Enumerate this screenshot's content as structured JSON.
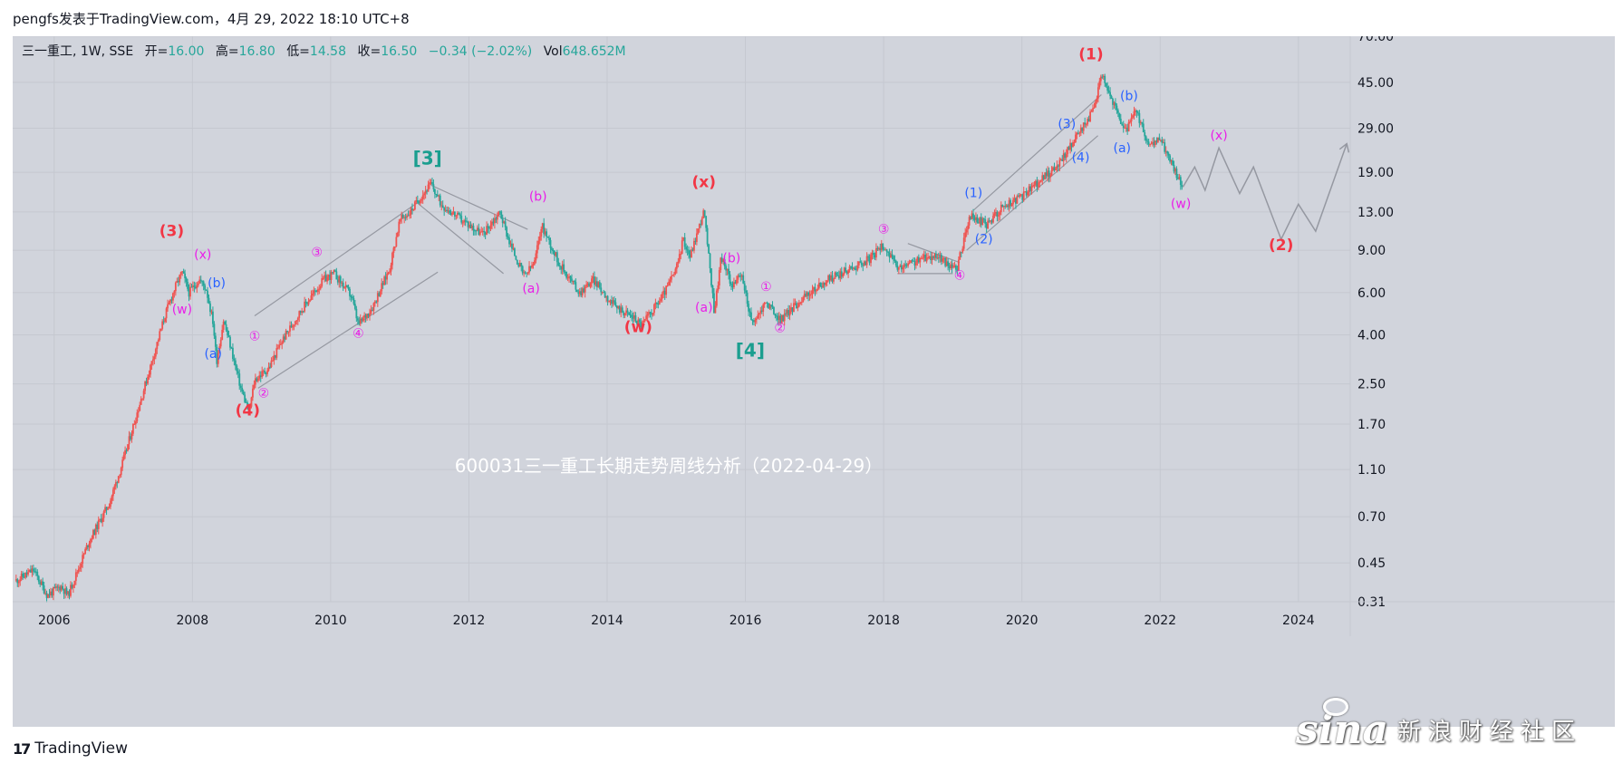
{
  "caption": "pengfs发表于TradingView.com，4月 29, 2022 18:10 UTC+8",
  "legend": {
    "symbol": "三一重工, 1W, SSE",
    "open_label": "开=",
    "open": "16.00",
    "high_label": "高=",
    "high": "16.80",
    "low_label": "低=",
    "low": "14.58",
    "close_label": "收=",
    "close": "16.50",
    "change": "−0.34 (−2.02%)",
    "vol_label": "Vol",
    "vol": "648.652M"
  },
  "watermark": "600031三一重工长期走势周线分析（2022-04-29）",
  "footer": {
    "brand": "TradingView",
    "logo_mark": "17"
  },
  "sina": {
    "word": "sina",
    "cn": "新浪财经社区"
  },
  "colors": {
    "background": "#d1d4dc",
    "up": "#ef5350",
    "down": "#26a69a",
    "legend_value": "#26a69a",
    "wave_red": "#f23645",
    "wave_magenta": "#e91ee8",
    "wave_blue": "#2962ff",
    "wave_teal": "#1a9e8f",
    "trendline": "#9598a1"
  },
  "chart_data": {
    "type": "candlestick",
    "title": "600031三一重工长期走势周线分析（2022-04-29）",
    "y_scale": "log",
    "y_ticks": [
      0.31,
      0.45,
      0.7,
      1.1,
      1.7,
      2.5,
      4.0,
      6.0,
      9.0,
      13.0,
      19.0,
      29.0,
      45.0,
      70.0
    ],
    "y_tick_labels": [
      "0.31",
      "0.45",
      "0.70",
      "1.10",
      "1.70",
      "2.50",
      "4.00",
      "6.00",
      "9.00",
      "13.00",
      "19.00",
      "29.00",
      "45.00",
      "70.00"
    ],
    "x_ticks": [
      "2006",
      "2008",
      "2010",
      "2012",
      "2014",
      "2016",
      "2018",
      "2020",
      "2022",
      "2024"
    ],
    "xlim": [
      2005.4,
      2024.75
    ],
    "grid": true,
    "price_path": [
      [
        2005.45,
        0.38
      ],
      [
        2005.7,
        0.42
      ],
      [
        2005.9,
        0.33
      ],
      [
        2006.1,
        0.36
      ],
      [
        2006.2,
        0.33
      ],
      [
        2006.5,
        0.55
      ],
      [
        2006.8,
        0.8
      ],
      [
        2007.0,
        1.2
      ],
      [
        2007.2,
        1.9
      ],
      [
        2007.4,
        3.0
      ],
      [
        2007.6,
        4.8
      ],
      [
        2007.75,
        6.3
      ],
      [
        2007.85,
        7.3
      ],
      [
        2007.95,
        6.0
      ],
      [
        2008.1,
        6.8
      ],
      [
        2008.2,
        6.2
      ],
      [
        2008.3,
        4.5
      ],
      [
        2008.35,
        3.1
      ],
      [
        2008.45,
        4.6
      ],
      [
        2008.55,
        3.6
      ],
      [
        2008.7,
        2.4
      ],
      [
        2008.82,
        1.9
      ],
      [
        2008.9,
        2.6
      ],
      [
        2009.1,
        2.9
      ],
      [
        2009.3,
        3.8
      ],
      [
        2009.6,
        5.2
      ],
      [
        2009.9,
        6.8
      ],
      [
        2010.05,
        7.2
      ],
      [
        2010.3,
        5.8
      ],
      [
        2010.4,
        4.4
      ],
      [
        2010.6,
        5.2
      ],
      [
        2010.85,
        7.5
      ],
      [
        2011.0,
        12.0
      ],
      [
        2011.15,
        13.0
      ],
      [
        2011.3,
        15.0
      ],
      [
        2011.45,
        17.0
      ],
      [
        2011.6,
        14.0
      ],
      [
        2011.9,
        12.0
      ],
      [
        2012.2,
        10.5
      ],
      [
        2012.45,
        13.0
      ],
      [
        2012.6,
        9.5
      ],
      [
        2012.8,
        7.0
      ],
      [
        2012.95,
        8.0
      ],
      [
        2013.05,
        11.5
      ],
      [
        2013.3,
        8.0
      ],
      [
        2013.6,
        6.0
      ],
      [
        2013.8,
        6.8
      ],
      [
        2014.1,
        5.3
      ],
      [
        2014.4,
        4.7
      ],
      [
        2014.5,
        4.4
      ],
      [
        2014.8,
        5.8
      ],
      [
        2015.0,
        7.5
      ],
      [
        2015.1,
        10.0
      ],
      [
        2015.2,
        8.5
      ],
      [
        2015.4,
        13.2
      ],
      [
        2015.55,
        5.0
      ],
      [
        2015.65,
        8.5
      ],
      [
        2015.8,
        6.5
      ],
      [
        2015.95,
        7.0
      ],
      [
        2016.1,
        4.4
      ],
      [
        2016.3,
        5.5
      ],
      [
        2016.5,
        4.6
      ],
      [
        2016.8,
        5.6
      ],
      [
        2017.2,
        6.8
      ],
      [
        2017.5,
        7.5
      ],
      [
        2017.8,
        8.3
      ],
      [
        2018.0,
        9.5
      ],
      [
        2018.2,
        7.5
      ],
      [
        2018.5,
        8.2
      ],
      [
        2018.75,
        8.6
      ],
      [
        2019.05,
        7.4
      ],
      [
        2019.25,
        12.5
      ],
      [
        2019.5,
        11.5
      ],
      [
        2019.7,
        13.5
      ],
      [
        2020.0,
        15.0
      ],
      [
        2020.25,
        17.5
      ],
      [
        2020.5,
        20.0
      ],
      [
        2020.8,
        27.0
      ],
      [
        2021.05,
        35.0
      ],
      [
        2021.15,
        50.0
      ],
      [
        2021.3,
        38.0
      ],
      [
        2021.5,
        28.0
      ],
      [
        2021.65,
        34.0
      ],
      [
        2021.85,
        24.0
      ],
      [
        2022.0,
        26.5
      ],
      [
        2022.15,
        21.0
      ],
      [
        2022.33,
        16.5
      ]
    ],
    "last_close": 16.5,
    "projection": [
      [
        2022.33,
        16.5
      ],
      [
        2022.5,
        20.0
      ],
      [
        2022.65,
        16.0
      ],
      [
        2022.85,
        24.0
      ],
      [
        2023.15,
        15.5
      ],
      [
        2023.35,
        20.0
      ],
      [
        2023.75,
        10.0
      ],
      [
        2024.0,
        14.0
      ],
      [
        2024.25,
        10.8
      ],
      [
        2024.7,
        25.0
      ]
    ],
    "trendlines": [
      {
        "from": [
          2008.9,
          4.8
        ],
        "to": [
          2011.3,
          14.5
        ]
      },
      {
        "from": [
          2008.95,
          2.4
        ],
        "to": [
          2011.55,
          7.3
        ]
      },
      {
        "from": [
          2011.45,
          16.8
        ],
        "to": [
          2012.85,
          11.0
        ]
      },
      {
        "from": [
          2011.25,
          14.2
        ],
        "to": [
          2012.5,
          7.2
        ]
      },
      {
        "from": [
          2018.35,
          9.6
        ],
        "to": [
          2019.1,
          8.0
        ]
      },
      {
        "from": [
          2018.2,
          7.2
        ],
        "to": [
          2019.0,
          7.2
        ]
      },
      {
        "from": [
          2019.3,
          13.2
        ],
        "to": [
          2021.15,
          40.0
        ]
      },
      {
        "from": [
          2019.2,
          9.0
        ],
        "to": [
          2021.1,
          27.0
        ]
      }
    ],
    "wave_labels": [
      {
        "text": "(3)",
        "x": 2007.7,
        "y": 10.3,
        "color": "red"
      },
      {
        "text": "(x)",
        "x": 2008.15,
        "y": 8.3,
        "color": "magenta"
      },
      {
        "text": "(w)",
        "x": 2007.85,
        "y": 4.9,
        "color": "magenta"
      },
      {
        "text": "(b)",
        "x": 2008.35,
        "y": 6.3,
        "color": "blue"
      },
      {
        "text": "(a)",
        "x": 2008.3,
        "y": 3.2,
        "color": "blue"
      },
      {
        "text": "(4)",
        "x": 2008.8,
        "y": 1.85,
        "color": "red"
      },
      {
        "text": "①",
        "x": 2008.9,
        "y": 3.8,
        "color": "magenta"
      },
      {
        "text": "②",
        "x": 2009.03,
        "y": 2.2,
        "color": "magenta"
      },
      {
        "text": "③",
        "x": 2009.8,
        "y": 8.5,
        "color": "magenta"
      },
      {
        "text": "④",
        "x": 2010.4,
        "y": 3.9,
        "color": "magenta"
      },
      {
        "text": "[3]",
        "x": 2011.4,
        "y": 20.5,
        "color": "teal"
      },
      {
        "text": "(b)",
        "x": 2013.0,
        "y": 14.5,
        "color": "magenta"
      },
      {
        "text": "(a)",
        "x": 2012.9,
        "y": 6.0,
        "color": "magenta"
      },
      {
        "text": "(w)",
        "x": 2014.45,
        "y": 4.1,
        "color": "red"
      },
      {
        "text": "(x)",
        "x": 2015.4,
        "y": 16.5,
        "color": "red"
      },
      {
        "text": "(b)",
        "x": 2015.8,
        "y": 8.0,
        "color": "magenta"
      },
      {
        "text": "(a)",
        "x": 2015.4,
        "y": 5.0,
        "color": "magenta"
      },
      {
        "text": "①",
        "x": 2016.3,
        "y": 6.1,
        "color": "magenta"
      },
      {
        "text": "②",
        "x": 2016.5,
        "y": 4.1,
        "color": "magenta"
      },
      {
        "text": "[4]",
        "x": 2016.07,
        "y": 3.25,
        "color": "teal"
      },
      {
        "text": "③",
        "x": 2018.0,
        "y": 10.6,
        "color": "magenta"
      },
      {
        "text": "④",
        "x": 2019.1,
        "y": 6.8,
        "color": "magenta"
      },
      {
        "text": "(1)",
        "x": 2019.3,
        "y": 15.0,
        "color": "blue"
      },
      {
        "text": "(2)",
        "x": 2019.45,
        "y": 9.6,
        "color": "blue"
      },
      {
        "text": "(3)",
        "x": 2020.65,
        "y": 29.0,
        "color": "blue"
      },
      {
        "text": "(4)",
        "x": 2020.85,
        "y": 21.0,
        "color": "blue"
      },
      {
        "text": "(1)",
        "x": 2021.0,
        "y": 56.0,
        "color": "red"
      },
      {
        "text": "(b)",
        "x": 2021.55,
        "y": 38.0,
        "color": "blue"
      },
      {
        "text": "(a)",
        "x": 2021.45,
        "y": 23.0,
        "color": "blue"
      },
      {
        "text": "(x)",
        "x": 2022.85,
        "y": 26.0,
        "color": "magenta"
      },
      {
        "text": "(w)",
        "x": 2022.3,
        "y": 13.5,
        "color": "magenta"
      },
      {
        "text": "(2)",
        "x": 2023.75,
        "y": 9.0,
        "color": "red"
      }
    ]
  }
}
